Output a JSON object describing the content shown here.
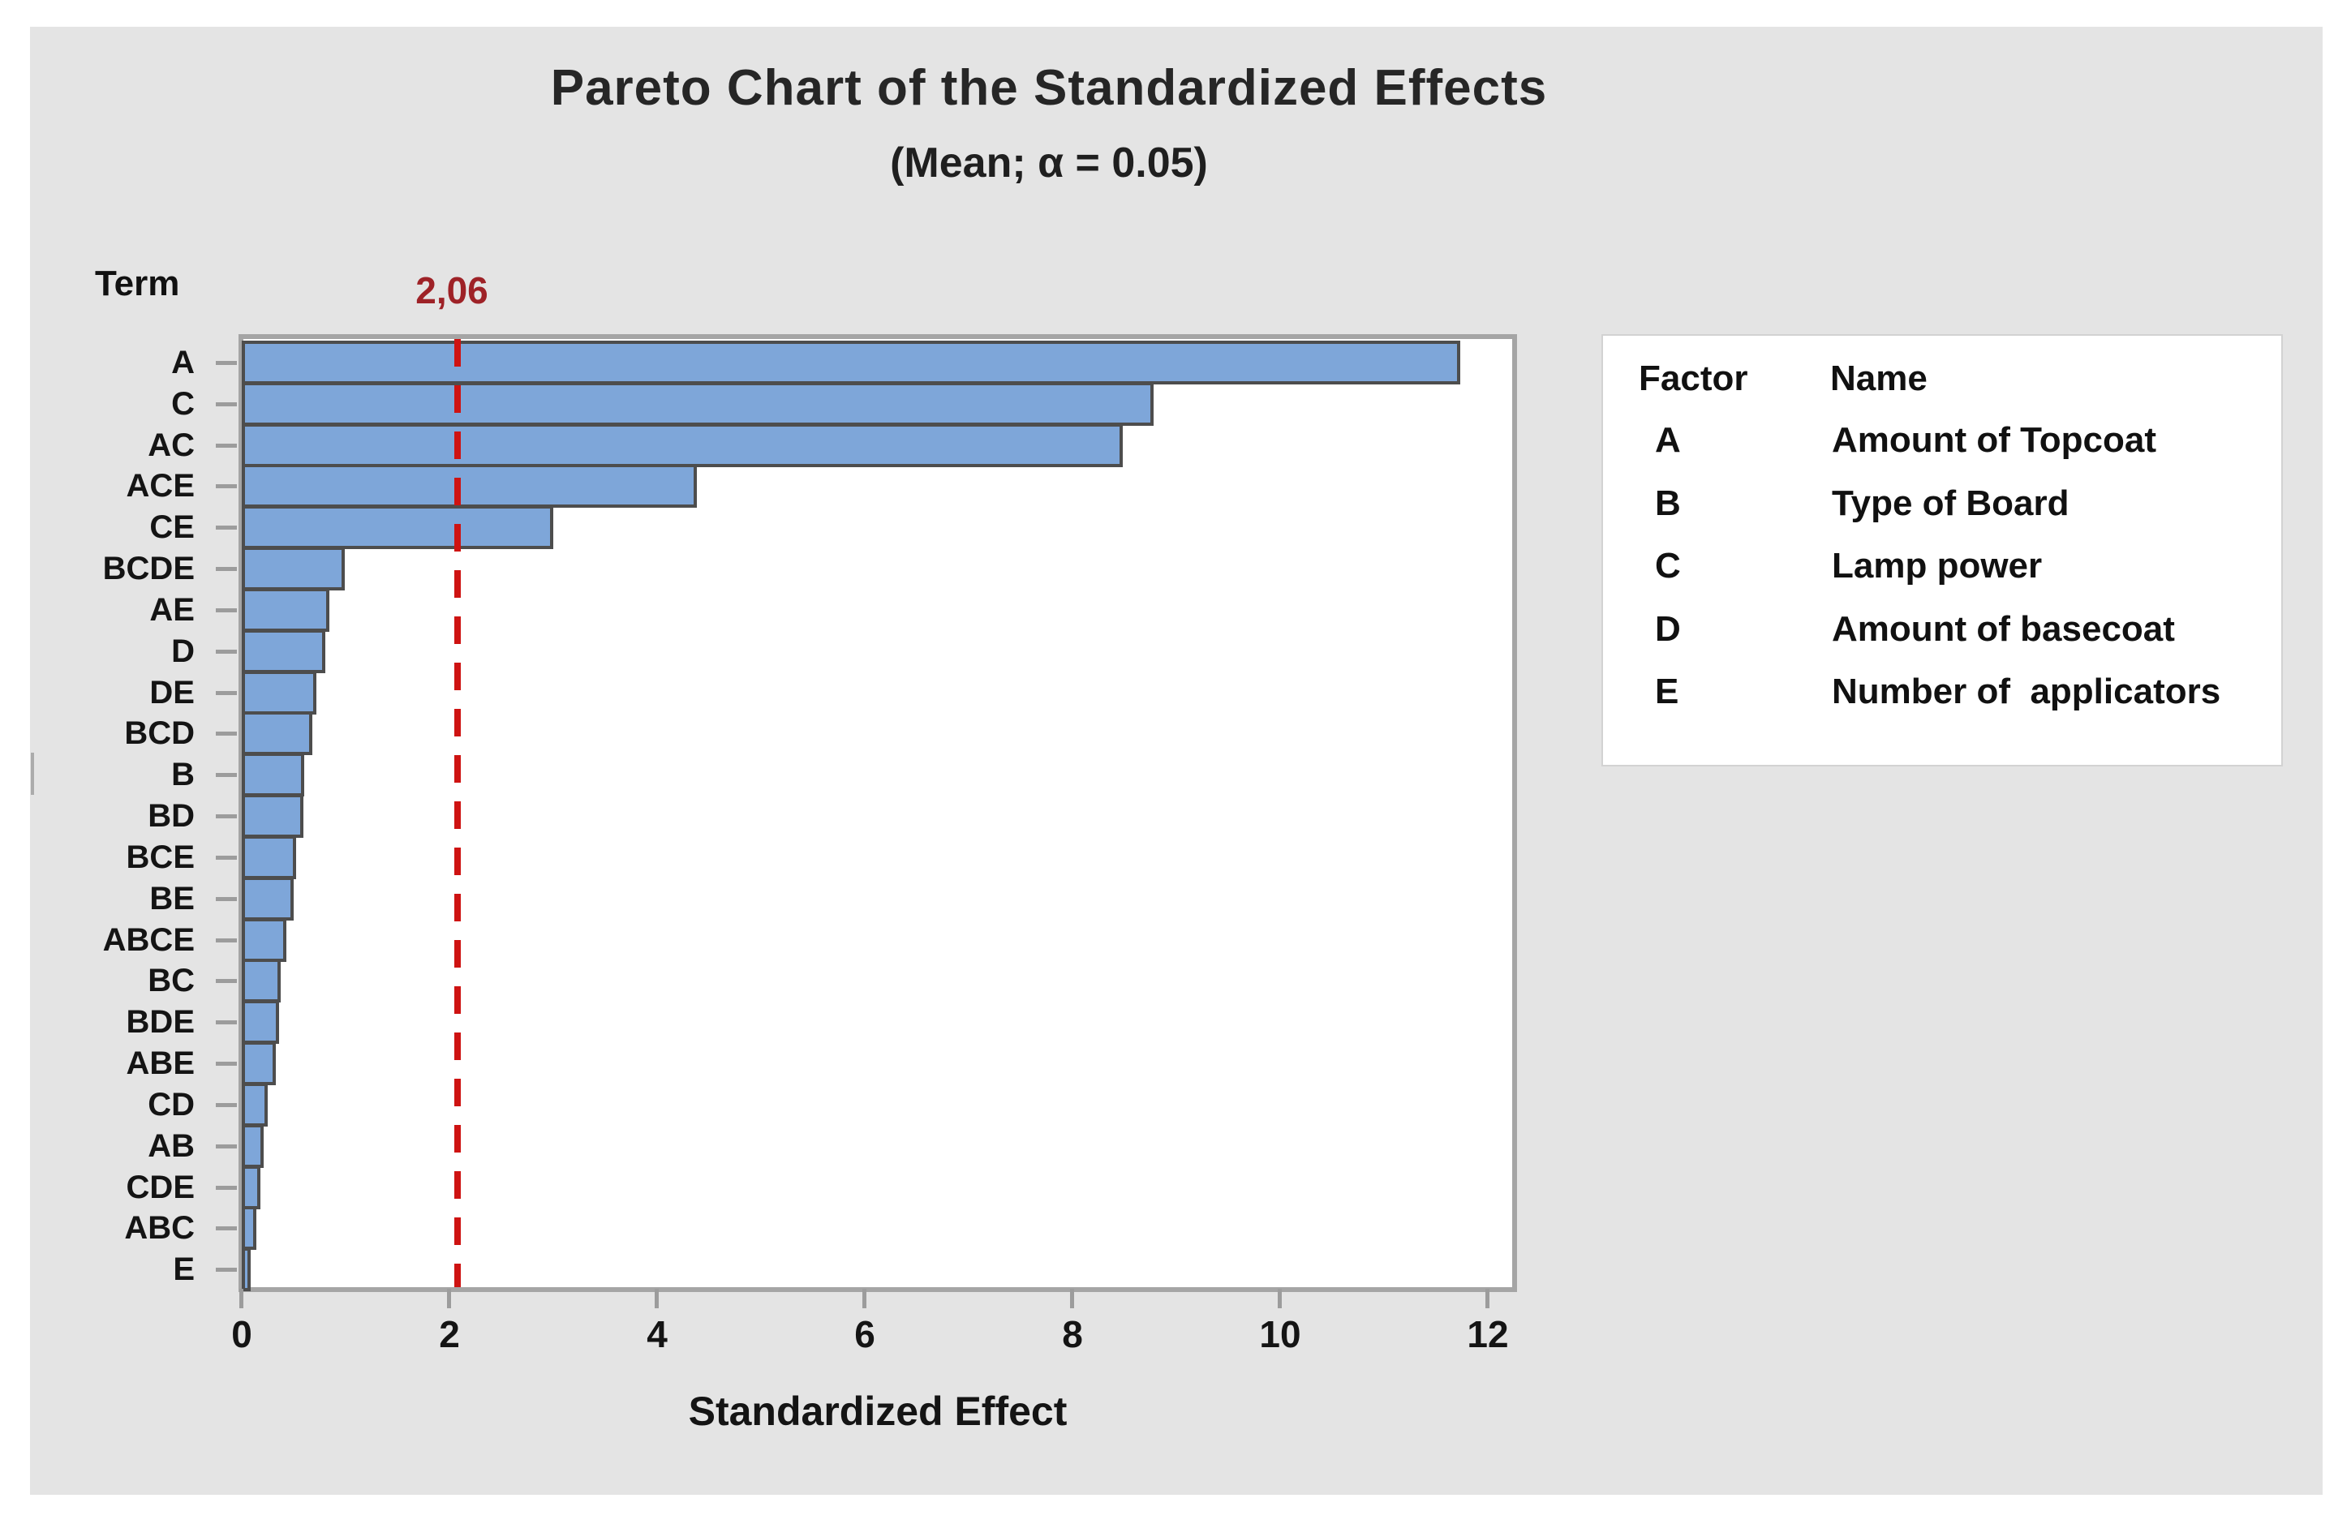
{
  "title": "Pareto Chart of the Standardized Effects",
  "subtitle": "(Mean; α = 0.05)",
  "term_axis_label": "Term",
  "x_axis_label": "Standardized Effect",
  "reference_line_label": "2,06",
  "chart_data": {
    "type": "bar",
    "orientation": "horizontal",
    "title": "Pareto Chart of the Standardized Effects",
    "subtitle": "(Mean; α = 0.05)",
    "xlabel": "Standardized Effect",
    "ylabel": "Term",
    "categories": [
      "A",
      "C",
      "AC",
      "ACE",
      "CE",
      "BCDE",
      "AE",
      "D",
      "DE",
      "BCD",
      "B",
      "BD",
      "BCE",
      "BE",
      "ABCE",
      "BC",
      "BDE",
      "ABE",
      "CD",
      "AB",
      "CDE",
      "ABC",
      "E"
    ],
    "values": [
      11.7,
      8.75,
      8.45,
      4.35,
      2.97,
      0.96,
      0.81,
      0.77,
      0.69,
      0.65,
      0.57,
      0.56,
      0.49,
      0.47,
      0.4,
      0.34,
      0.33,
      0.3,
      0.22,
      0.18,
      0.15,
      0.11,
      0.05
    ],
    "x_ticks": [
      0,
      2,
      4,
      6,
      8,
      10,
      12
    ],
    "xlim": [
      0,
      12.3
    ],
    "reference_line_value": 2.06,
    "reference_line_display": "2,06",
    "grid": false,
    "legend_position": "right"
  },
  "legend": {
    "headers": {
      "factor": "Factor",
      "name": "Name"
    },
    "rows": [
      {
        "factor": "A",
        "name": "Amount of Topcoat"
      },
      {
        "factor": "B",
        "name": "Type of Board"
      },
      {
        "factor": "C",
        "name": "Lamp power"
      },
      {
        "factor": "D",
        "name": "Amount of basecoat"
      },
      {
        "factor": "E",
        "name": "Number of  applicators"
      }
    ]
  },
  "colors": {
    "figure_background": "#e4e4e4",
    "plot_background": "#ffffff",
    "bar_fill": "#7ea6d9",
    "bar_border": "#4d4d4d",
    "frame_gray": "#a5a5a5",
    "tick_gray": "#9c9c9c",
    "reference_line_red": "#ce1312",
    "reference_label_dark_red": "#9e2227",
    "text_color": "#1a1a1a"
  }
}
